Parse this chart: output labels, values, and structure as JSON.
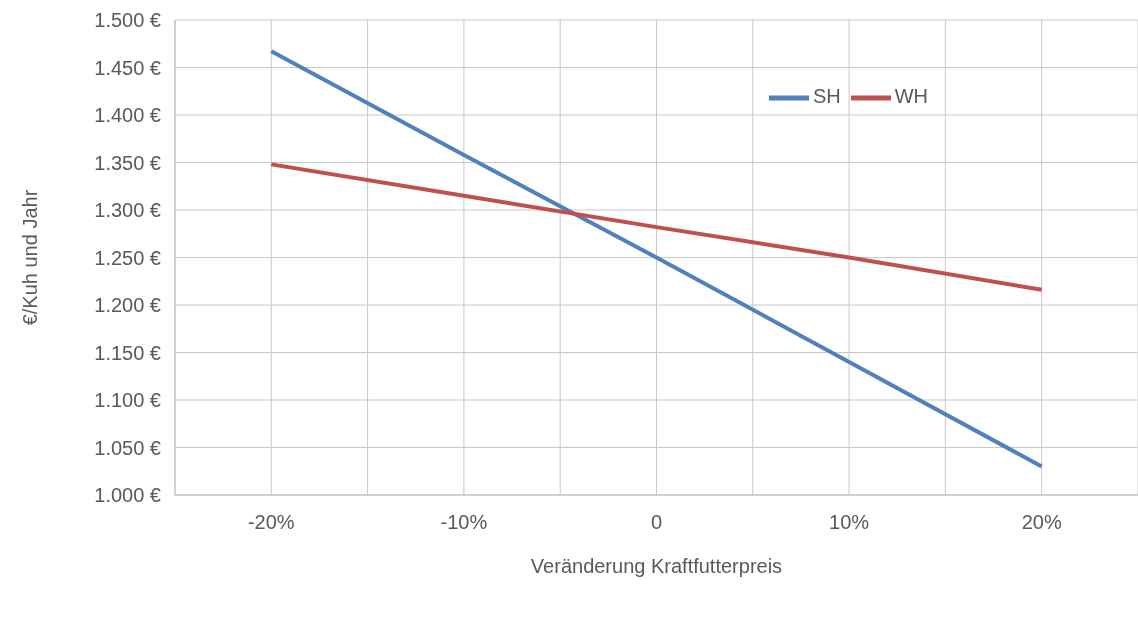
{
  "chart_data": {
    "type": "line",
    "xlabel": "Veränderung Kraftfutterpreis",
    "ylabel": "€/Kuh und Jahr",
    "x": [
      -20,
      -10,
      0,
      10,
      20
    ],
    "series": [
      {
        "name": "SH",
        "color": "#4f81bd",
        "values": [
          1467,
          1358,
          1250,
          1140,
          1030
        ]
      },
      {
        "name": "WH",
        "color": "#c0504d",
        "values": [
          1348,
          1315,
          1282,
          1250,
          1216
        ]
      }
    ],
    "xlim": [
      -25,
      25
    ],
    "xticks": [
      {
        "value": -25,
        "label": null
      },
      {
        "value": -20,
        "label": "-20%"
      },
      {
        "value": -15,
        "label": null
      },
      {
        "value": -10,
        "label": "-10%"
      },
      {
        "value": -5,
        "label": null
      },
      0,
      {
        "value": 5,
        "label": null
      },
      {
        "value": 10,
        "label": "10%"
      },
      {
        "value": 15,
        "label": null
      },
      {
        "value": 20,
        "label": "20%"
      },
      {
        "value": 25,
        "label": null
      }
    ],
    "ylim": [
      1000,
      1500
    ],
    "yticks": [
      {
        "value": 1000,
        "label": "1.000 €"
      },
      {
        "value": 1050,
        "label": "1.050 €"
      },
      {
        "value": 1100,
        "label": "1.100 €"
      },
      {
        "value": 1150,
        "label": "1.150 €"
      },
      {
        "value": 1200,
        "label": "1.200 €"
      },
      {
        "value": 1250,
        "label": "1.250 €"
      },
      {
        "value": 1300,
        "label": "1.300 €"
      },
      {
        "value": 1350,
        "label": "1.350 €"
      },
      {
        "value": 1400,
        "label": "1.400 €"
      },
      {
        "value": 1450,
        "label": "1.450 €"
      },
      {
        "value": 1500,
        "label": "1.500 €"
      }
    ],
    "grid": true,
    "legend": "top right",
    "marker": "none",
    "line_style": "solid"
  }
}
